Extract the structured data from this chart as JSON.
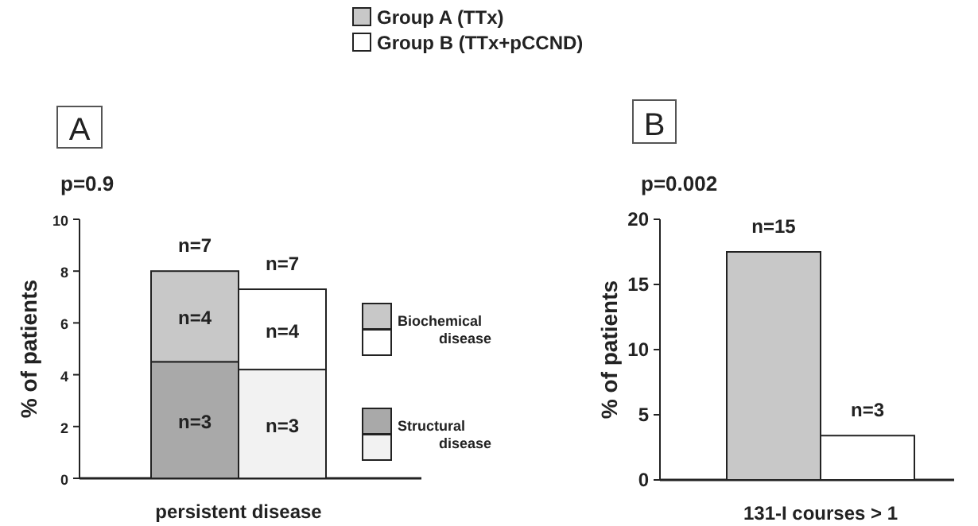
{
  "chart_data": [
    {
      "type": "bar",
      "title": "A",
      "subtitle": "p=0.9",
      "xlabel": "persistent disease",
      "ylabel": "% of patients",
      "categories": [
        null,
        null
      ],
      "stacked": true,
      "ylim": [
        0,
        10
      ],
      "yticks": [
        0,
        2,
        4,
        6,
        8,
        10
      ],
      "legend": "right",
      "annotations": [
        "n=3",
        "n=4",
        "n=7",
        "n=3",
        "n=4",
        "n=7"
      ],
      "series": [
        {
          "name": "Structural disease",
          "colors": [
            "#a9a9a9",
            "#f2f2f2"
          ],
          "values": [
            4.5,
            4.2
          ]
        },
        {
          "name": "Biochemical disease",
          "colors": [
            "#c8c8c8",
            "#ffffff"
          ],
          "values": [
            3.5,
            3.1
          ]
        }
      ]
    },
    {
      "type": "bar",
      "title": "B",
      "subtitle": "p=0.002",
      "xlabel": "131-I courses > 1",
      "ylabel": "% of patients",
      "categories": [
        null
      ],
      "ylim": [
        0,
        20
      ],
      "yticks": [
        0,
        5,
        10,
        15,
        20
      ],
      "legend": "top",
      "annotations": [
        "n=15",
        "n=3"
      ],
      "series": [
        {
          "name": "Group A (TTx)",
          "color": "#c8c8c8",
          "values": [
            17.5
          ]
        },
        {
          "name": "Group B (TTx+pCCND)",
          "color": "#ffffff",
          "values": [
            3.4
          ]
        }
      ]
    }
  ]
}
